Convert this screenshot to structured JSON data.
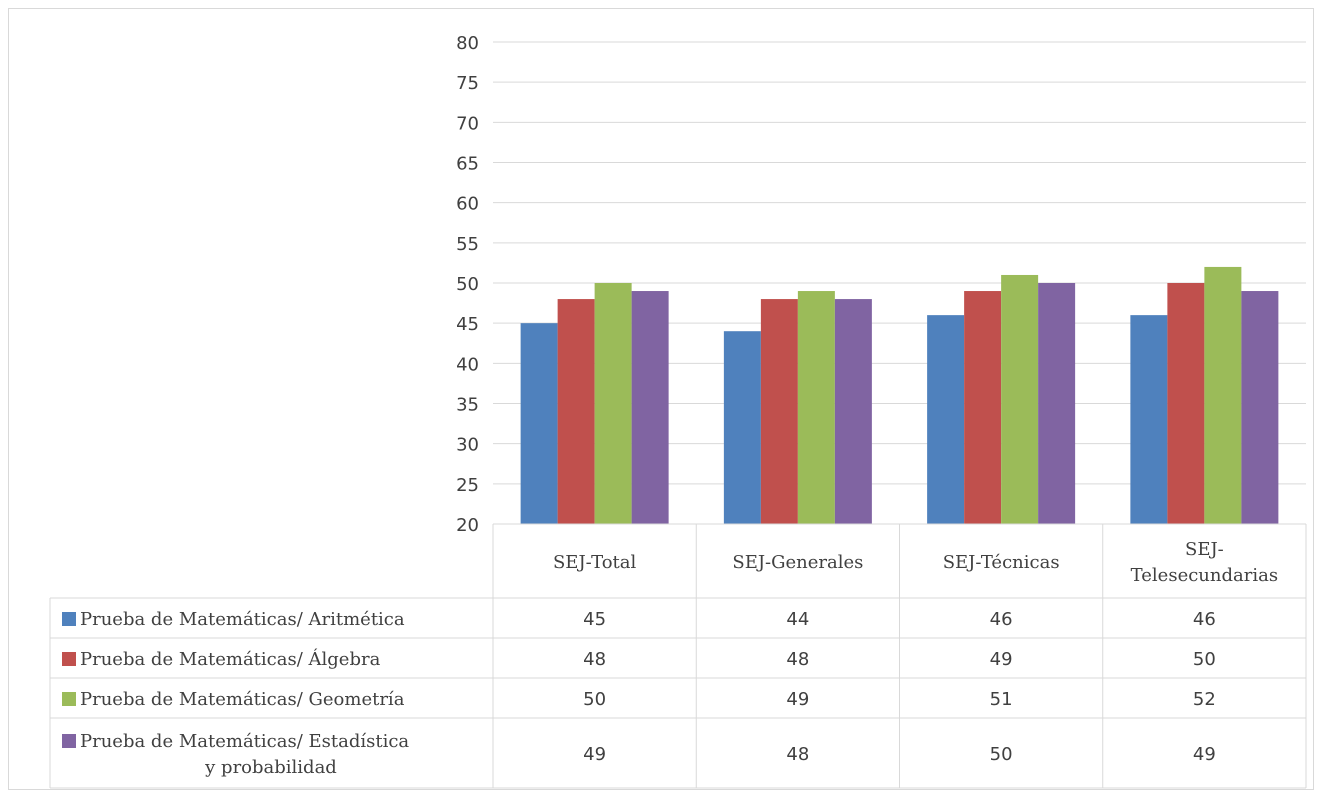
{
  "chart_data": {
    "type": "bar",
    "categories": [
      "SEJ-Total",
      "SEJ-Generales",
      "SEJ-Técnicas",
      "SEJ-Telesecundarias"
    ],
    "category_lines": [
      [
        "SEJ-Total"
      ],
      [
        "SEJ-Generales"
      ],
      [
        "SEJ-Técnicas"
      ],
      [
        "SEJ-",
        "Telesecundarias"
      ]
    ],
    "series": [
      {
        "name": "Prueba de Matemáticas/ Aritmética",
        "name_lines": [
          "Prueba de Matemáticas/ Aritmética"
        ],
        "color": "#4f81bd",
        "values": [
          45,
          44,
          46,
          46
        ]
      },
      {
        "name": "Prueba de Matemáticas/ Álgebra",
        "name_lines": [
          "Prueba de Matemáticas/ Álgebra"
        ],
        "color": "#c0504d",
        "values": [
          48,
          48,
          49,
          50
        ]
      },
      {
        "name": "Prueba de Matemáticas/ Geometría",
        "name_lines": [
          "Prueba de Matemáticas/ Geometría"
        ],
        "color": "#9bbb59",
        "values": [
          50,
          49,
          51,
          52
        ]
      },
      {
        "name": "Prueba de Matemáticas/ Estadística y probabilidad",
        "name_lines": [
          "Prueba de Matemáticas/ Estadística",
          "y probabilidad"
        ],
        "color": "#8064a2",
        "values": [
          49,
          48,
          50,
          49
        ]
      }
    ],
    "yticks": [
      20,
      25,
      30,
      35,
      40,
      45,
      50,
      55,
      60,
      65,
      70,
      75,
      80
    ],
    "ylim": [
      20,
      80
    ],
    "grid": true,
    "legend": "data-table",
    "title": "",
    "xlabel": "",
    "ylabel": ""
  }
}
